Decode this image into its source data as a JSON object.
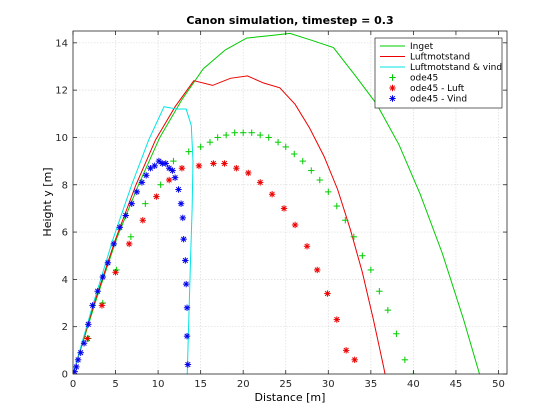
{
  "chart_data": {
    "type": "line",
    "title": "Canon simulation, timestep = 0.3",
    "xlabel": "Distance [m]",
    "ylabel": "Height y [m]",
    "xlim": [
      0,
      51
    ],
    "ylim": [
      0,
      14.5
    ],
    "xticks": [
      "0",
      "5",
      "10",
      "15",
      "20",
      "25",
      "30",
      "35",
      "40",
      "45",
      "50"
    ],
    "yticks": [
      "0",
      "2",
      "4",
      "6",
      "8",
      "10",
      "12",
      "14"
    ],
    "grid": true,
    "legend_position": "top-right",
    "series": [
      {
        "name": "Inget",
        "style": "line",
        "color": "#00cc00",
        "x": [
          0,
          2.6,
          5.1,
          7.7,
          10.2,
          12.8,
          15.3,
          17.9,
          20.4,
          23.0,
          25.5,
          28.1,
          30.6,
          33.2,
          35.7,
          38.3,
          40.8,
          43.4,
          45.9,
          48.5
        ],
        "y": [
          0,
          3.0,
          5.7,
          8.0,
          10.0,
          11.6,
          12.9,
          13.7,
          14.2,
          14.3,
          14.4,
          14.1,
          13.8,
          12.6,
          11.4,
          9.7,
          7.6,
          5.1,
          2.3,
          -0.9
        ]
      },
      {
        "name": "Luftmotstand",
        "style": "line",
        "color": "#ee0000",
        "x": [
          0,
          2.5,
          5.0,
          7.4,
          9.7,
          12.0,
          14.2,
          16.4,
          18.5,
          20.5,
          22.4,
          24.3,
          26.1,
          27.8,
          29.5,
          31.1,
          32.6,
          34.0,
          35.3,
          36.5,
          37.0
        ],
        "y": [
          0,
          3.0,
          5.7,
          8.0,
          9.9,
          11.3,
          12.4,
          12.2,
          12.5,
          12.6,
          12.3,
          12.1,
          11.4,
          10.4,
          9.2,
          7.8,
          6.1,
          4.3,
          2.3,
          0.3,
          -0.6
        ]
      },
      {
        "name": "Luftmotstand & vind",
        "style": "line",
        "color": "#00e5e5",
        "x": [
          0,
          2.4,
          4.7,
          6.9,
          8.9,
          10.7,
          12.2,
          13.3,
          13.9,
          14.1,
          14.0,
          13.8,
          13.6,
          13.4
        ],
        "y": [
          0,
          3.0,
          5.7,
          8.0,
          9.9,
          11.3,
          11.2,
          11.2,
          10.5,
          9.0,
          7.0,
          4.7,
          2.2,
          -0.3
        ]
      },
      {
        "name": "ode45",
        "style": "marker",
        "marker": "+",
        "color": "#00cc00",
        "x": [
          1.8,
          3.5,
          5.1,
          6.8,
          8.5,
          10.3,
          11.8,
          13.6,
          15.0,
          16.1,
          17.0,
          18.0,
          19.0,
          20.0,
          21.0,
          22.0,
          23.0,
          24.1,
          25.0,
          26.0,
          27.0,
          28.0,
          29.0,
          30.0,
          31.0,
          32.0,
          33.0,
          34.0,
          35.0,
          36.0,
          37.0,
          38.0,
          39.0,
          40.0
        ],
        "y": [
          1.5,
          3.0,
          4.4,
          5.8,
          7.2,
          8.0,
          9.0,
          9.4,
          9.6,
          9.8,
          10.0,
          10.1,
          10.2,
          10.2,
          10.2,
          10.1,
          10.0,
          9.8,
          9.6,
          9.3,
          9.0,
          8.6,
          8.2,
          7.7,
          7.1,
          6.5,
          5.8,
          5.0,
          4.4,
          3.5,
          2.7,
          1.7,
          0.6,
          0.0
        ]
      },
      {
        "name": "ode45 - Luft",
        "style": "marker",
        "marker": "*",
        "color": "#ee0000",
        "x": [
          1.7,
          3.4,
          5.0,
          6.6,
          8.2,
          9.8,
          11.3,
          12.8,
          14.8,
          16.5,
          17.8,
          19.2,
          20.6,
          22.0,
          23.4,
          24.8,
          26.1,
          27.5,
          28.7,
          29.9,
          31.0,
          32.1,
          33.1,
          34.0
        ],
        "y": [
          1.5,
          2.9,
          4.3,
          5.5,
          6.5,
          7.5,
          8.2,
          8.7,
          8.8,
          8.9,
          8.9,
          8.7,
          8.5,
          8.1,
          7.6,
          7.0,
          6.3,
          5.4,
          4.4,
          3.4,
          2.3,
          1.0,
          0.6,
          -0.2
        ]
      },
      {
        "name": "ode45 - Vind",
        "style": "marker",
        "marker": "*",
        "color": "#0000ee",
        "x": [
          0.2,
          0.4,
          0.6,
          0.9,
          1.3,
          1.8,
          2.3,
          2.9,
          3.5,
          4.1,
          4.8,
          5.5,
          6.2,
          6.9,
          7.5,
          8.1,
          8.6,
          9.1,
          9.6,
          10.1,
          10.5,
          10.9,
          11.3,
          11.7,
          12.0,
          12.4,
          12.7,
          12.9,
          13.0,
          13.2,
          13.3,
          13.4,
          13.4,
          13.5
        ],
        "y": [
          0.1,
          0.3,
          0.6,
          0.9,
          1.3,
          2.1,
          2.9,
          3.5,
          4.1,
          4.7,
          5.5,
          6.2,
          6.7,
          7.2,
          7.7,
          8.1,
          8.4,
          8.7,
          8.8,
          9.0,
          8.9,
          8.9,
          8.7,
          8.6,
          8.3,
          7.8,
          7.2,
          6.6,
          5.7,
          4.8,
          3.8,
          2.8,
          1.6,
          0.4
        ]
      }
    ]
  }
}
